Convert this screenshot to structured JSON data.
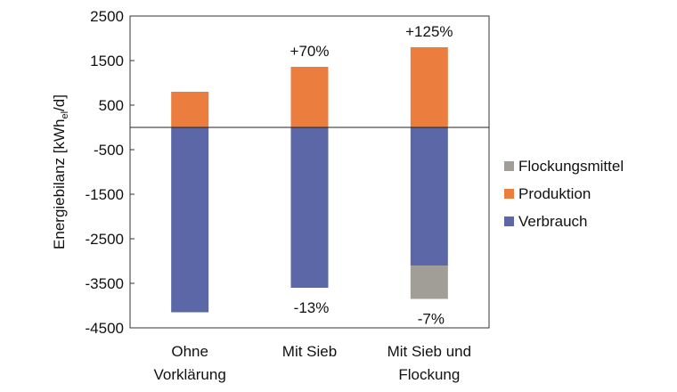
{
  "chart_data": {
    "type": "bar",
    "stacked": true,
    "categories": [
      "Ohne\nVorklärung",
      "Mit Sieb",
      "Mit Sieb und\nFlockung"
    ],
    "series": [
      {
        "name": "Verbrauch",
        "values": [
          -4150,
          -3600,
          -3100
        ],
        "color": "#5B67A6"
      },
      {
        "name": "Produktion",
        "values": [
          800,
          1360,
          1800
        ],
        "color": "#EB7D3F"
      },
      {
        "name": "Flockungsmittel",
        "values": [
          0,
          0,
          -750
        ],
        "color": "#A19D97"
      }
    ],
    "annotations_top": [
      "",
      "+70%",
      "+125%"
    ],
    "annotations_bottom": [
      "",
      "-13%",
      "-7%"
    ],
    "ylabel": "Energiebilanz [kWh",
    "ylabel_sub": "el",
    "ylabel_end": "/d]",
    "ylim": [
      -4500,
      2500
    ],
    "yticks": [
      2500,
      1500,
      500,
      -500,
      -1500,
      -2500,
      -3500,
      -4500
    ],
    "grid": false,
    "legend_order": [
      "Flockungsmittel",
      "Produktion",
      "Verbrauch"
    ],
    "legend_position": "right"
  }
}
